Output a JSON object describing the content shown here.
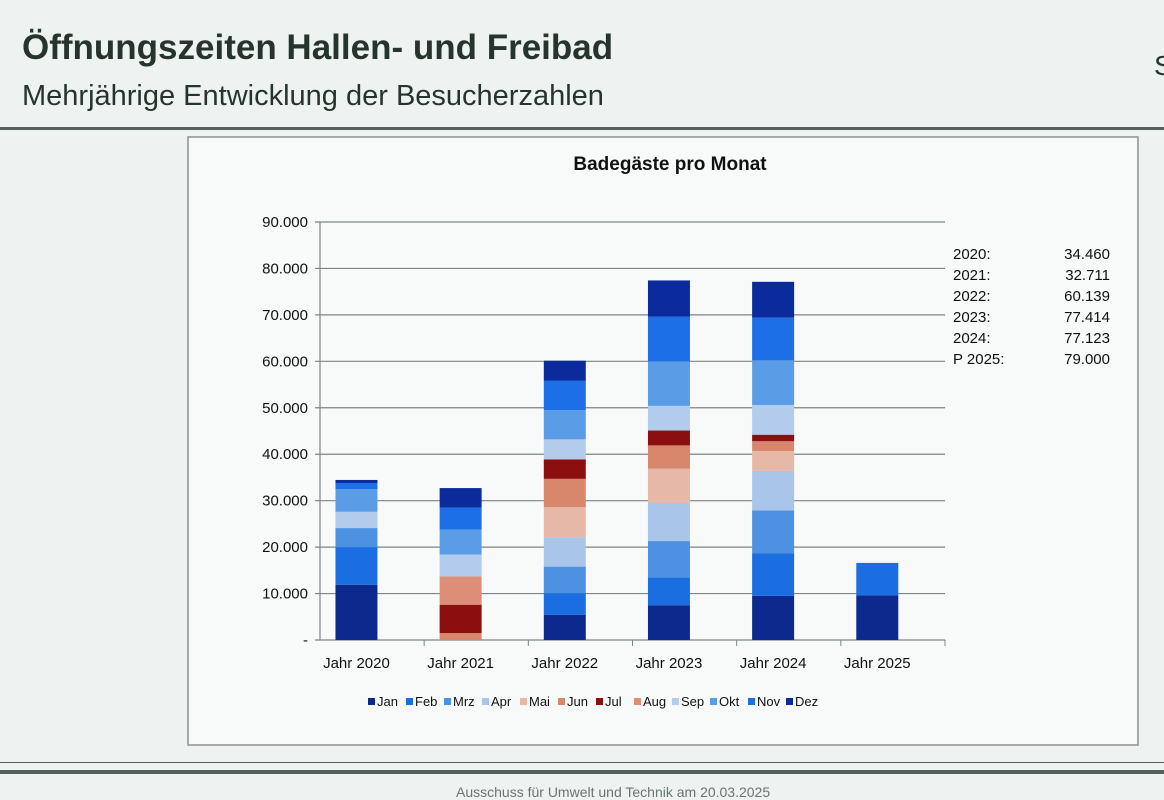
{
  "slide": {
    "title": "Öffnungszeiten Hallen- und Freibad",
    "subtitle": "Mehrjährige Entwicklung der Besucherzahlen",
    "corner_text": "S",
    "footer": "Ausschuss für Umwelt und Technik am 20.03.2025"
  },
  "chart_data": {
    "type": "bar",
    "stacked": true,
    "title": "Badegäste pro Monat",
    "xlabel": "",
    "ylabel": "",
    "ylim": [
      0,
      90000
    ],
    "yticks": [
      0,
      10000,
      20000,
      30000,
      40000,
      50000,
      60000,
      70000,
      80000,
      90000
    ],
    "ytick_labels": [
      "-",
      "10.000",
      "20.000",
      "30.000",
      "40.000",
      "50.000",
      "60.000",
      "70.000",
      "80.000",
      "90.000"
    ],
    "grid": true,
    "legend_position": "bottom",
    "categories": [
      "Jahr 2020",
      "Jahr 2021",
      "Jahr 2022",
      "Jahr 2023",
      "Jahr 2024",
      "Jahr 2025"
    ],
    "series": [
      {
        "name": "Jan",
        "color": "#0c2a8e",
        "values": [
          11900,
          0,
          5400,
          7500,
          9500,
          9600
        ]
      },
      {
        "name": "Feb",
        "color": "#1b6ee2",
        "values": [
          8100,
          0,
          4700,
          6000,
          9200,
          7000
        ]
      },
      {
        "name": "Mrz",
        "color": "#4d92e2",
        "values": [
          4100,
          0,
          5700,
          7800,
          9200,
          0
        ]
      },
      {
        "name": "Apr",
        "color": "#a9c5ea",
        "values": [
          0,
          0,
          6300,
          8200,
          8500,
          0
        ]
      },
      {
        "name": "Mai",
        "color": "#e6b8a8",
        "values": [
          0,
          0,
          6500,
          7400,
          4300,
          0
        ]
      },
      {
        "name": "Jun",
        "color": "#d8866c",
        "values": [
          0,
          1500,
          6100,
          5000,
          2100,
          0
        ]
      },
      {
        "name": "Jul",
        "color": "#8c0f10",
        "values": [
          0,
          6100,
          4200,
          3200,
          1400,
          0
        ]
      },
      {
        "name": "Aug",
        "color": "#dc8e78",
        "values": [
          0,
          6100,
          0,
          0,
          0,
          0
        ]
      },
      {
        "name": "Sep",
        "color": "#b3cbec",
        "values": [
          3500,
          4700,
          4300,
          5300,
          6400,
          0
        ]
      },
      {
        "name": "Okt",
        "color": "#5a9de6",
        "values": [
          4900,
          5400,
          6300,
          9600,
          9600,
          0
        ]
      },
      {
        "name": "Nov",
        "color": "#1d6fe8",
        "values": [
          1300,
          4700,
          6300,
          9600,
          9200,
          0
        ]
      },
      {
        "name": "Dez",
        "color": "#0b2b9c",
        "values": [
          660,
          4211,
          4339,
          7814,
          7723,
          0
        ]
      }
    ],
    "annotations": [
      {
        "label": "2020:",
        "value": "34.460"
      },
      {
        "label": "2021:",
        "value": "32.711"
      },
      {
        "label": "2022:",
        "value": "60.139"
      },
      {
        "label": "2023:",
        "value": "77.414"
      },
      {
        "label": "2024:",
        "value": "77.123"
      },
      {
        "label": "P 2025:",
        "value": "79.000"
      }
    ]
  }
}
